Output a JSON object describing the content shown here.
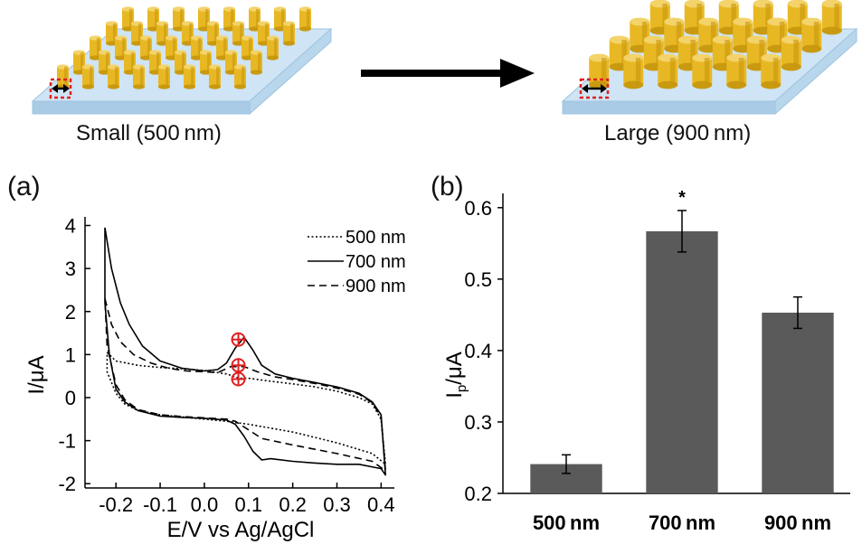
{
  "schematic": {
    "left_label": "Small (500 nm)",
    "right_label": "Large (900 nm)",
    "pillar_color": "#e8b824",
    "substrate_color": "#cfe4f4"
  },
  "panels": {
    "a": "(a)",
    "b": "(b)"
  },
  "chart_data": [
    {
      "type": "line",
      "panel": "a",
      "title": "",
      "xlabel": "E/V vs Ag/AgCl",
      "ylabel": "I/μA",
      "xlim": [
        -0.27,
        0.43
      ],
      "ylim": [
        -2.1,
        4.2
      ],
      "xticks": [
        -0.2,
        -0.1,
        0.0,
        0.1,
        0.2,
        0.3,
        0.4
      ],
      "xtick_labels": [
        "-0.2",
        "-0.1",
        "0.0",
        "0.1",
        "0.2",
        "0.3",
        "0.4"
      ],
      "yticks": [
        -2,
        -1,
        0,
        1,
        2,
        3,
        4
      ],
      "ytick_labels": [
        "-2",
        "-1",
        "0",
        "1",
        "2",
        "3",
        "4"
      ],
      "grid": false,
      "legend": "top-right",
      "series": [
        {
          "name": "500 nm",
          "dash": "dotted",
          "upper": [
            [
              -0.22,
              1.05
            ],
            [
              -0.2,
              0.85
            ],
            [
              -0.15,
              0.75
            ],
            [
              -0.1,
              0.7
            ],
            [
              -0.05,
              0.67
            ],
            [
              0.0,
              0.63
            ],
            [
              0.05,
              0.55
            ],
            [
              0.08,
              0.45
            ],
            [
              0.1,
              0.45
            ],
            [
              0.15,
              0.38
            ],
            [
              0.2,
              0.32
            ],
            [
              0.25,
              0.25
            ],
            [
              0.3,
              0.15
            ],
            [
              0.35,
              0.0
            ],
            [
              0.38,
              -0.15
            ],
            [
              0.4,
              -0.5
            ],
            [
              0.41,
              -1.55
            ]
          ],
          "lower": [
            [
              0.41,
              -1.55
            ],
            [
              0.38,
              -1.3
            ],
            [
              0.3,
              -1.05
            ],
            [
              0.2,
              -0.8
            ],
            [
              0.1,
              -0.62
            ],
            [
              0.05,
              -0.55
            ],
            [
              0.0,
              -0.5
            ],
            [
              -0.05,
              -0.45
            ],
            [
              -0.1,
              -0.4
            ],
            [
              -0.15,
              -0.3
            ],
            [
              -0.18,
              -0.15
            ],
            [
              -0.2,
              0.1
            ],
            [
              -0.22,
              0.6
            ],
            [
              -0.22,
              1.05
            ]
          ]
        },
        {
          "name": "700 nm",
          "dash": "solid",
          "upper": [
            [
              -0.225,
              3.95
            ],
            [
              -0.21,
              3.0
            ],
            [
              -0.19,
              2.2
            ],
            [
              -0.17,
              1.7
            ],
            [
              -0.14,
              1.2
            ],
            [
              -0.1,
              0.85
            ],
            [
              -0.05,
              0.68
            ],
            [
              0.0,
              0.62
            ],
            [
              0.03,
              0.65
            ],
            [
              0.05,
              0.8
            ],
            [
              0.07,
              1.15
            ],
            [
              0.09,
              1.4
            ],
            [
              0.11,
              1.1
            ],
            [
              0.13,
              0.75
            ],
            [
              0.16,
              0.55
            ],
            [
              0.2,
              0.45
            ],
            [
              0.25,
              0.35
            ],
            [
              0.3,
              0.25
            ],
            [
              0.35,
              0.1
            ],
            [
              0.38,
              -0.1
            ],
            [
              0.4,
              -0.4
            ],
            [
              0.41,
              -1.8
            ]
          ],
          "lower": [
            [
              0.41,
              -1.8
            ],
            [
              0.4,
              -1.65
            ],
            [
              0.35,
              -1.55
            ],
            [
              0.3,
              -1.55
            ],
            [
              0.25,
              -1.52
            ],
            [
              0.2,
              -1.48
            ],
            [
              0.15,
              -1.42
            ],
            [
              0.13,
              -1.45
            ],
            [
              0.11,
              -1.25
            ],
            [
              0.09,
              -0.9
            ],
            [
              0.07,
              -0.62
            ],
            [
              0.05,
              -0.52
            ],
            [
              0.0,
              -0.48
            ],
            [
              -0.05,
              -0.46
            ],
            [
              -0.1,
              -0.43
            ],
            [
              -0.15,
              -0.3
            ],
            [
              -0.18,
              -0.1
            ],
            [
              -0.2,
              0.2
            ],
            [
              -0.215,
              1.0
            ],
            [
              -0.225,
              2.2
            ],
            [
              -0.225,
              3.95
            ]
          ]
        },
        {
          "name": "900 nm",
          "dash": "dashed",
          "upper": [
            [
              -0.225,
              2.3
            ],
            [
              -0.21,
              1.7
            ],
            [
              -0.19,
              1.3
            ],
            [
              -0.16,
              1.0
            ],
            [
              -0.12,
              0.8
            ],
            [
              -0.08,
              0.68
            ],
            [
              -0.04,
              0.62
            ],
            [
              0.0,
              0.6
            ],
            [
              0.03,
              0.58
            ],
            [
              0.06,
              0.72
            ],
            [
              0.09,
              0.72
            ],
            [
              0.12,
              0.6
            ],
            [
              0.16,
              0.48
            ],
            [
              0.2,
              0.42
            ],
            [
              0.25,
              0.33
            ],
            [
              0.3,
              0.22
            ],
            [
              0.35,
              0.08
            ],
            [
              0.38,
              -0.12
            ],
            [
              0.4,
              -0.45
            ],
            [
              0.41,
              -1.7
            ]
          ],
          "lower": [
            [
              0.41,
              -1.7
            ],
            [
              0.38,
              -1.48
            ],
            [
              0.3,
              -1.3
            ],
            [
              0.2,
              -1.1
            ],
            [
              0.13,
              -0.95
            ],
            [
              0.1,
              -0.75
            ],
            [
              0.07,
              -0.55
            ],
            [
              0.05,
              -0.5
            ],
            [
              0.0,
              -0.47
            ],
            [
              -0.05,
              -0.44
            ],
            [
              -0.1,
              -0.4
            ],
            [
              -0.15,
              -0.28
            ],
            [
              -0.18,
              -0.05
            ],
            [
              -0.2,
              0.3
            ],
            [
              -0.22,
              1.2
            ],
            [
              -0.225,
              2.3
            ]
          ]
        }
      ],
      "markers": [
        [
          0.077,
          1.35
        ],
        [
          0.077,
          0.75
        ],
        [
          0.077,
          0.43
        ]
      ],
      "marker_color": "#e02020"
    },
    {
      "type": "bar",
      "panel": "b",
      "title": "",
      "xlabel": "",
      "ylabel": "I",
      "ylabel_sub": "p",
      "ylabel_suffix": "/μA",
      "categories": [
        "500 nm",
        "700 nm",
        "900 nm"
      ],
      "values": [
        0.241,
        0.567,
        0.453
      ],
      "errors": [
        0.013,
        0.029,
        0.022
      ],
      "annotations": [
        "",
        "*",
        ""
      ],
      "ylim": [
        0.2,
        0.62
      ],
      "yticks": [
        0.2,
        0.3,
        0.4,
        0.5,
        0.6
      ],
      "ytick_labels": [
        "0.2",
        "0.3",
        "0.4",
        "0.5",
        "0.6"
      ],
      "grid": false,
      "bar_color": "#5a5a5a"
    }
  ]
}
